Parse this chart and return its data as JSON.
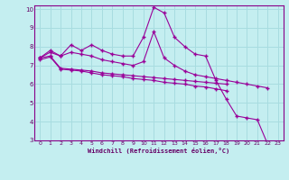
{
  "xlabel": "Windchill (Refroidissement éolien,°C)",
  "bg_color": "#c4eef0",
  "grid_color": "#a8dce0",
  "line_color": "#990099",
  "xlim": [
    -0.5,
    23.5
  ],
  "ylim": [
    3,
    10.2
  ],
  "xticks": [
    0,
    1,
    2,
    3,
    4,
    5,
    6,
    7,
    8,
    9,
    10,
    11,
    12,
    13,
    14,
    15,
    16,
    17,
    18,
    19,
    20,
    21,
    22,
    23
  ],
  "yticks": [
    3,
    4,
    5,
    6,
    7,
    8,
    9,
    10
  ],
  "series": [
    {
      "x": [
        0,
        1,
        2,
        3,
        4,
        5,
        6,
        7,
        8,
        9,
        10,
        11,
        12,
        13,
        14,
        15,
        16,
        17,
        18,
        19,
        20,
        21,
        22,
        23
      ],
      "y": [
        7.4,
        7.8,
        7.5,
        8.1,
        7.8,
        8.1,
        7.8,
        7.6,
        7.5,
        7.5,
        8.5,
        10.1,
        9.8,
        8.5,
        8.0,
        7.6,
        7.5,
        6.2,
        5.2,
        4.3,
        4.2,
        4.1,
        2.8,
        2.8
      ]
    },
    {
      "x": [
        0,
        1,
        2,
        3,
        4,
        5,
        6,
        7,
        8,
        9,
        10,
        11,
        12,
        13,
        14,
        15,
        16,
        17,
        18,
        19,
        20,
        21,
        22
      ],
      "y": [
        7.4,
        7.7,
        7.5,
        7.7,
        7.6,
        7.5,
        7.3,
        7.2,
        7.1,
        7.0,
        7.2,
        8.8,
        7.4,
        7.0,
        6.7,
        6.5,
        6.4,
        6.3,
        6.2,
        6.1,
        6.0,
        5.9,
        5.8
      ]
    },
    {
      "x": [
        0,
        1,
        2,
        3,
        4,
        5,
        6,
        7,
        8,
        9,
        10,
        11,
        12,
        13,
        14,
        15,
        16,
        17,
        18
      ],
      "y": [
        7.4,
        7.5,
        6.85,
        6.8,
        6.75,
        6.7,
        6.6,
        6.55,
        6.5,
        6.45,
        6.4,
        6.35,
        6.3,
        6.25,
        6.2,
        6.15,
        6.1,
        6.05,
        6.0
      ]
    },
    {
      "x": [
        0,
        1,
        2,
        3,
        4,
        5,
        6,
        7,
        8,
        9,
        10,
        11,
        12,
        13,
        14,
        15,
        16,
        17,
        18
      ],
      "y": [
        7.3,
        7.45,
        6.8,
        6.75,
        6.7,
        6.6,
        6.5,
        6.45,
        6.4,
        6.3,
        6.25,
        6.2,
        6.1,
        6.05,
        6.0,
        5.9,
        5.85,
        5.75,
        5.65
      ]
    }
  ]
}
